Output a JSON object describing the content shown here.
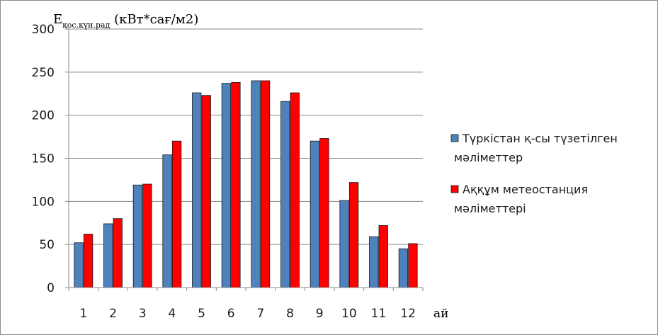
{
  "chart_data": {
    "type": "bar",
    "title": "",
    "ylabel_main": "E",
    "ylabel_sub": "қос.күн.рад",
    "ylabel_unit": " (кВт*сағ/м2)",
    "xlabel": "ай",
    "categories": [
      "1",
      "2",
      "3",
      "4",
      "5",
      "6",
      "7",
      "8",
      "9",
      "10",
      "11",
      "12"
    ],
    "ylim": [
      0,
      300
    ],
    "yticks": [
      0,
      50,
      100,
      150,
      200,
      250,
      300
    ],
    "grid": true,
    "legend_position": "right",
    "series": [
      {
        "name": "Түркістан қ-сы түзетілген мәліметтер",
        "legend_lines": [
          "Түркістан қ-сы түзетілген",
          "мәліметтер"
        ],
        "color": "#4f81bd",
        "values": [
          52,
          74,
          119,
          154,
          226,
          237,
          240,
          216,
          170,
          101,
          59,
          45
        ]
      },
      {
        "name": "Аққұм метеостанция мәліметтері",
        "legend_lines": [
          "Аққұм метеостанция",
          "мәліметтері"
        ],
        "color": "#ff0000",
        "values": [
          62,
          80,
          120,
          170,
          223,
          238,
          240,
          226,
          173,
          122,
          72,
          51
        ]
      }
    ]
  }
}
